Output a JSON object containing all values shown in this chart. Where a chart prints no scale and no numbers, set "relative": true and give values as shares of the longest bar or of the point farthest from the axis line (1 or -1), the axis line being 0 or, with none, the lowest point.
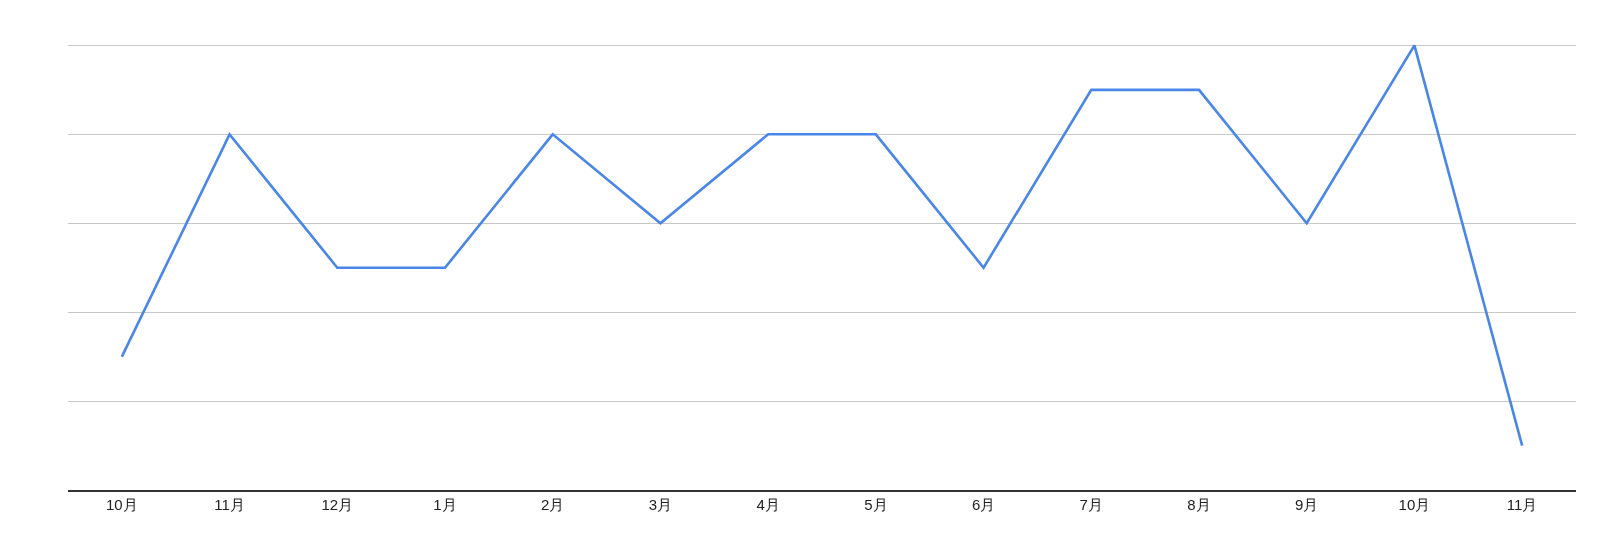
{
  "chart_data": {
    "type": "line",
    "relative": true,
    "grid": "y",
    "marker": "none",
    "line_style": "solid",
    "categories": [
      "10月",
      "11月",
      "12月",
      "1月",
      "2月",
      "3月",
      "4月",
      "5月",
      "6月",
      "7月",
      "8月",
      "9月",
      "10月",
      "11月"
    ],
    "series": [
      {
        "color": "#4a86e8",
        "values": [
          0.3,
          0.8,
          0.5,
          0.5,
          0.8,
          0.6,
          0.8,
          0.8,
          0.5,
          0.9,
          0.9,
          0.6,
          1,
          0.1
        ]
      }
    ]
  }
}
